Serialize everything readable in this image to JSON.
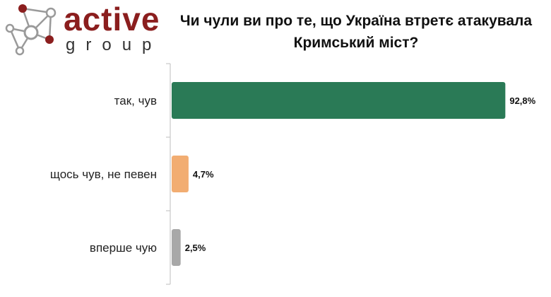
{
  "logo": {
    "name": "active",
    "subtitle": "group",
    "colors": {
      "dark_red": "#8b1e1e",
      "gray": "#9a9a9a"
    }
  },
  "chart_data": {
    "type": "bar",
    "orientation": "horizontal",
    "title": "Чи чули ви про те, що Україна втретє атакувала Кримський міст?",
    "categories": [
      "так, чув",
      "щось чув, не певен",
      "вперше чую"
    ],
    "values": [
      92.8,
      4.7,
      2.5
    ],
    "value_labels": [
      "92,8%",
      "4,7%",
      "2,5%"
    ],
    "colors": [
      "#2a7a56",
      "#f2ad72",
      "#a8a8a8"
    ],
    "xlim": [
      0,
      100
    ],
    "grid": false,
    "legend": "none"
  }
}
